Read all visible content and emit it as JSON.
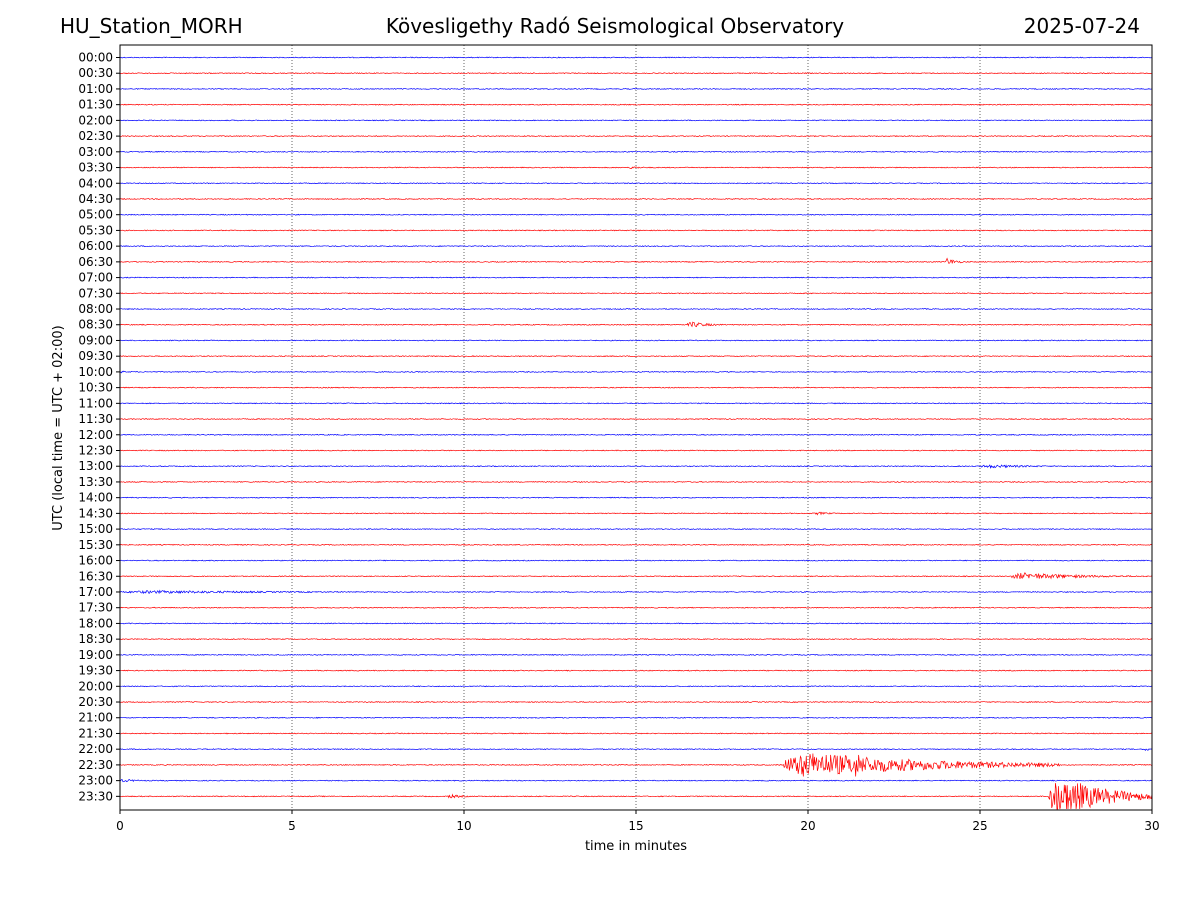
{
  "header": {
    "station": "HU_Station_MORH",
    "title": "Kövesligethy Radó Seismological Observatory",
    "date": "2025-07-24"
  },
  "chart_data": {
    "type": "line",
    "title": "Kövesligethy Radó Seismological Observatory",
    "xlabel": "time in minutes",
    "ylabel": "UTC (local time = UTC + 02:00)",
    "xlim": [
      0,
      30
    ],
    "x_ticks": [
      0,
      5,
      10,
      15,
      20,
      25,
      30
    ],
    "x_tick_labels": [
      "0",
      "5",
      "10",
      "15",
      "20",
      "25",
      "30"
    ],
    "grid": "vertical dotted at x ticks",
    "colors": {
      "blue": "#0000ff",
      "red": "#ff0000"
    },
    "trace_colors_alternate": [
      "blue",
      "red"
    ],
    "trace_labels": [
      "00:00",
      "00:30",
      "01:00",
      "01:30",
      "02:00",
      "02:30",
      "03:00",
      "03:30",
      "04:00",
      "04:30",
      "05:00",
      "05:30",
      "06:00",
      "06:30",
      "07:00",
      "07:30",
      "08:00",
      "08:30",
      "09:00",
      "09:30",
      "10:00",
      "10:30",
      "11:00",
      "11:30",
      "12:00",
      "12:30",
      "13:00",
      "13:30",
      "14:00",
      "14:30",
      "15:00",
      "15:30",
      "16:00",
      "16:30",
      "17:00",
      "17:30",
      "18:00",
      "18:30",
      "19:00",
      "19:30",
      "20:00",
      "20:30",
      "21:00",
      "21:30",
      "22:00",
      "22:30",
      "23:00",
      "23:30"
    ],
    "events": [
      {
        "trace": "03:30",
        "start": 14.8,
        "duration": 0.8,
        "amplitude": 1.5
      },
      {
        "trace": "06:30",
        "start": 24.0,
        "duration": 0.6,
        "amplitude": 4
      },
      {
        "trace": "08:30",
        "start": 16.5,
        "duration": 1.2,
        "amplitude": 3
      },
      {
        "trace": "10:00",
        "start": 0.0,
        "duration": 0.3,
        "amplitude": 1.5
      },
      {
        "trace": "13:00",
        "start": 25.0,
        "duration": 3.0,
        "amplitude": 1.8
      },
      {
        "trace": "14:30",
        "start": 20.2,
        "duration": 1.0,
        "amplitude": 1.5
      },
      {
        "trace": "16:30",
        "start": 25.9,
        "duration": 4.0,
        "amplitude": 3.5
      },
      {
        "trace": "17:00",
        "start": 0.0,
        "duration": 11.0,
        "amplitude": 1.5
      },
      {
        "trace": "22:00",
        "start": 29.8,
        "duration": 0.2,
        "amplitude": 3
      },
      {
        "trace": "22:30",
        "start": 19.3,
        "duration": 8.0,
        "amplitude": 13
      },
      {
        "trace": "22:30",
        "start": 21.2,
        "duration": 1.5,
        "amplitude": 14
      },
      {
        "trace": "23:00",
        "start": 0.0,
        "duration": 1.2,
        "amplitude": 1.5
      },
      {
        "trace": "23:30",
        "start": 9.5,
        "duration": 1.0,
        "amplitude": 2
      },
      {
        "trace": "23:30",
        "start": 27.0,
        "duration": 3.0,
        "amplitude": 22
      }
    ]
  }
}
